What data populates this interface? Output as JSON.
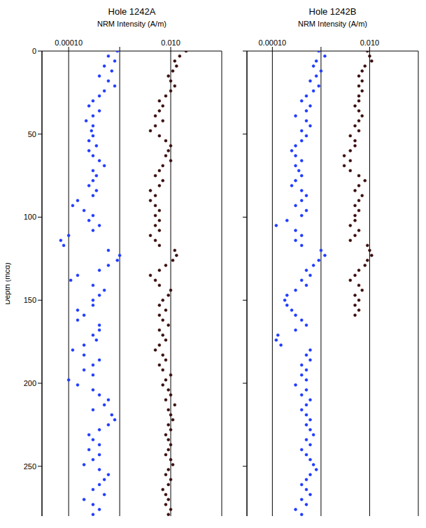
{
  "chart_data": [
    {
      "type": "scatter",
      "title": "Hole 1242A",
      "xlabel": "NRM Intensity (A/m)",
      "ylabel": "Depth (mcd)",
      "log": "x",
      "grid": true,
      "xlim": [
        3e-05,
        0.1
      ],
      "ylim": [
        280,
        0
      ],
      "xticks": [
        {
          "value": 0.0001,
          "label": "0.00010"
        },
        {
          "value": 0.001,
          "label": null
        },
        {
          "value": 0.01,
          "label": "0.010"
        }
      ],
      "yticks": [
        0,
        50,
        100,
        150,
        200,
        250
      ],
      "series": [
        {
          "color": "#1f3bff",
          "marker": "circle",
          "x": [
            0.0009,
            0.0006,
            0.0008,
            0.0005,
            0.0007,
            0.0004,
            0.0006,
            0.0008,
            0.0005,
            0.0004,
            0.0003,
            0.00025,
            0.0004,
            0.0003,
            0.00022,
            0.0003,
            0.00028,
            0.0003,
            0.00025,
            0.00035,
            0.00025,
            0.0003,
            0.0004,
            0.0005,
            0.0003,
            0.00035,
            0.0003,
            0.00025,
            0.00035,
            0.0003,
            0.00015,
            0.00012,
            0.0002,
            0.0003,
            0.00025,
            0.0004,
            0.0003,
            0.0001,
            7e-05,
            8e-05,
            0.0006,
            0.001,
            0.0009,
            0.0006,
            0.0004,
            0.00015,
            0.00011,
            0.0003,
            0.0005,
            0.0004,
            0.0003,
            0.0003,
            0.00015,
            0.0002,
            0.00015,
            0.0004,
            0.0004,
            0.0003,
            0.00035,
            0.0002,
            0.00012,
            0.0002,
            0.0004,
            0.0003,
            0.0002,
            0.0003,
            0.0001,
            0.00015,
            0.0003,
            0.0004,
            0.0006,
            0.0005,
            0.0003,
            0.0007,
            0.0008,
            0.0006,
            0.0004,
            0.00025,
            0.0003,
            0.0004,
            0.00025,
            0.0004,
            0.0003,
            0.0002,
            0.0004,
            0.0006,
            0.0005,
            0.0004,
            0.0003,
            0.0005,
            0.0002,
            0.0003,
            0.0004,
            0.0003
          ],
          "y": [
            0,
            3,
            6,
            9,
            12,
            15,
            18,
            21,
            24,
            27,
            30,
            33,
            36,
            39,
            42,
            45,
            48,
            51,
            54,
            57,
            60,
            63,
            66,
            69,
            72,
            75,
            78,
            81,
            84,
            87,
            90,
            93,
            96,
            99,
            102,
            105,
            108,
            111,
            114,
            117,
            120,
            123,
            126,
            129,
            132,
            135,
            138,
            141,
            144,
            147,
            150,
            153,
            156,
            159,
            162,
            165,
            168,
            171,
            174,
            177,
            180,
            183,
            186,
            189,
            192,
            195,
            198,
            201,
            204,
            207,
            210,
            213,
            216,
            219,
            222,
            225,
            228,
            231,
            234,
            237,
            240,
            243,
            246,
            249,
            252,
            255,
            258,
            261,
            264,
            267,
            270,
            273,
            276,
            279
          ]
        },
        {
          "color": "#3a0e0e",
          "marker": "circle",
          "x": [
            0.02,
            0.015,
            0.012,
            0.013,
            0.011,
            0.009,
            0.01,
            0.012,
            0.01,
            0.008,
            0.006,
            0.007,
            0.006,
            0.005,
            0.007,
            0.005,
            0.004,
            0.006,
            0.008,
            0.01,
            0.009,
            0.008,
            0.01,
            0.007,
            0.006,
            0.005,
            0.007,
            0.006,
            0.004,
            0.005,
            0.004,
            0.005,
            0.006,
            0.005,
            0.006,
            0.005,
            0.006,
            0.004,
            0.005,
            0.006,
            0.012,
            0.013,
            0.011,
            0.008,
            0.006,
            0.004,
            0.005,
            0.006,
            0.01,
            0.009,
            0.007,
            0.006,
            0.008,
            0.006,
            0.007,
            0.009,
            0.006,
            0.007,
            0.008,
            0.006,
            0.005,
            0.007,
            0.008,
            0.006,
            0.007,
            0.01,
            0.008,
            0.007,
            0.009,
            0.01,
            0.008,
            0.012,
            0.009,
            0.01,
            0.011,
            0.009,
            0.01,
            0.008,
            0.009,
            0.01,
            0.009,
            0.008,
            0.01,
            0.011,
            0.009,
            0.008,
            0.01,
            0.009,
            0.007,
            0.008,
            0.009,
            0.008,
            0.01,
            0.009
          ],
          "y": [
            0,
            3,
            6,
            9,
            12,
            15,
            18,
            21,
            24,
            27,
            30,
            33,
            36,
            39,
            42,
            45,
            48,
            51,
            54,
            57,
            60,
            63,
            66,
            69,
            72,
            75,
            78,
            81,
            84,
            87,
            90,
            93,
            96,
            99,
            102,
            105,
            108,
            111,
            114,
            117,
            120,
            123,
            126,
            129,
            132,
            135,
            138,
            141,
            144,
            147,
            150,
            153,
            156,
            159,
            162,
            165,
            168,
            171,
            174,
            177,
            180,
            183,
            186,
            189,
            192,
            195,
            198,
            201,
            204,
            207,
            210,
            213,
            216,
            219,
            222,
            225,
            228,
            231,
            234,
            237,
            240,
            243,
            246,
            249,
            252,
            255,
            258,
            261,
            264,
            267,
            270,
            273,
            276,
            279
          ]
        }
      ]
    },
    {
      "type": "scatter",
      "title": "Hole 1242B",
      "xlabel": "NRM Intensity (A/m)",
      "log": "x",
      "grid": true,
      "tick_labels": "x",
      "xlim": [
        3e-05,
        0.1
      ],
      "ylim": [
        280,
        0
      ],
      "xticks": [
        {
          "value": 0.0001,
          "label": "0.00010"
        },
        {
          "value": 0.001,
          "label": null
        },
        {
          "value": 0.01,
          "label": "0.010"
        }
      ],
      "yticks": [
        0,
        50,
        100,
        150,
        200,
        250
      ],
      "series": [
        {
          "color": "#1f3bff",
          "marker": "circle",
          "x": [
            0.0009,
            0.0012,
            0.0008,
            0.0007,
            0.001,
            0.0008,
            0.0006,
            0.0009,
            0.0007,
            0.0005,
            0.0004,
            0.0006,
            0.0005,
            0.0003,
            0.0005,
            0.0006,
            0.0004,
            0.0005,
            0.0004,
            0.0003,
            0.00025,
            0.0003,
            0.0004,
            0.0003,
            0.00035,
            0.0004,
            0.0003,
            0.00025,
            0.0004,
            0.0005,
            0.0004,
            0.0003,
            0.0005,
            0.0004,
            0.0002,
            0.00012,
            0.0003,
            0.0004,
            0.0003,
            0.0004,
            0.001,
            0.0012,
            0.0009,
            0.0007,
            0.0005,
            0.0006,
            0.0004,
            0.0005,
            0.0003,
            0.0002,
            0.00018,
            0.0002,
            0.00025,
            0.0003,
            0.0004,
            0.0005,
            0.0003,
            0.00013,
            0.00012,
            0.00015,
            0.0006,
            0.0005,
            0.0006,
            0.0004,
            0.0005,
            0.0004,
            0.0005,
            0.0003,
            0.0005,
            0.0004,
            0.0006,
            0.0005,
            0.0004,
            0.0005,
            0.0006,
            0.0005,
            0.0006,
            0.0007,
            0.0005,
            0.0006,
            0.0004,
            0.0005,
            0.0006,
            0.0007,
            0.0008,
            0.0006,
            0.0005,
            0.0004,
            0.0005,
            0.0006,
            0.0004,
            0.0005,
            0.0003,
            0.0004
          ],
          "y": [
            0,
            3,
            6,
            9,
            12,
            15,
            18,
            21,
            24,
            27,
            30,
            33,
            36,
            39,
            42,
            45,
            48,
            51,
            54,
            57,
            60,
            63,
            66,
            69,
            72,
            75,
            78,
            81,
            84,
            87,
            90,
            93,
            96,
            99,
            102,
            105,
            108,
            111,
            114,
            117,
            120,
            123,
            126,
            129,
            132,
            135,
            138,
            141,
            144,
            147,
            150,
            153,
            156,
            159,
            162,
            165,
            168,
            171,
            174,
            177,
            180,
            183,
            186,
            189,
            192,
            195,
            198,
            201,
            204,
            207,
            210,
            213,
            216,
            219,
            222,
            225,
            228,
            231,
            234,
            237,
            240,
            243,
            246,
            249,
            252,
            255,
            258,
            261,
            264,
            267,
            270,
            273,
            276,
            279
          ]
        },
        {
          "color": "#3a0e0e",
          "marker": "circle",
          "x": [
            0.009,
            0.01,
            0.011,
            0.008,
            0.007,
            0.006,
            0.007,
            0.006,
            0.007,
            0.006,
            0.006,
            0.005,
            0.006,
            0.007,
            0.006,
            0.005,
            0.006,
            0.004,
            0.005,
            0.005,
            0.004,
            0.003,
            0.004,
            0.003,
            0.004,
            0.006,
            0.008,
            0.006,
            0.005,
            0.007,
            0.006,
            0.005,
            0.006,
            0.005,
            0.005,
            0.004,
            0.006,
            0.005,
            0.004,
            0.009,
            0.01,
            0.011,
            0.009,
            0.008,
            0.006,
            0.005,
            0.004,
            0.006,
            0.007,
            0.005,
            0.006,
            0.005,
            0.006,
            0.005
          ],
          "y": [
            0,
            3,
            6,
            9,
            12,
            15,
            18,
            21,
            24,
            27,
            30,
            33,
            36,
            39,
            42,
            45,
            48,
            51,
            54,
            57,
            60,
            63,
            66,
            69,
            72,
            75,
            78,
            81,
            84,
            87,
            90,
            93,
            96,
            99,
            102,
            105,
            108,
            111,
            114,
            117,
            120,
            123,
            126,
            129,
            132,
            135,
            138,
            141,
            144,
            147,
            150,
            153,
            156,
            159
          ]
        }
      ]
    }
  ]
}
